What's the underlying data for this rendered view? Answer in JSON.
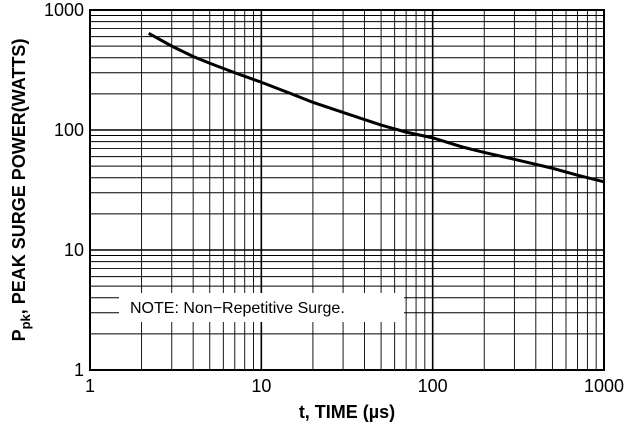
{
  "chart_data": {
    "type": "line",
    "title": "",
    "xlabel": "t, TIME (µs)",
    "ylabel_main": "P",
    "ylabel_sub": "pk",
    "ylabel_rest": ", PEAK SURGE POWER(WATTS)",
    "x_scale": "log",
    "y_scale": "log",
    "xlim": [
      1,
      1000
    ],
    "ylim": [
      1,
      1000
    ],
    "x_tick_labels": [
      "1",
      "10",
      "100",
      "1000"
    ],
    "y_tick_labels": [
      "1",
      "10",
      "100",
      "1000"
    ],
    "grid": true,
    "annotation": "NOTE: Non−Repetitive Surge.",
    "series": [
      {
        "x": [
          2.2,
          3,
          4,
          5,
          7,
          10,
          15,
          20,
          30,
          50,
          70,
          100,
          150,
          200,
          300,
          500,
          700,
          1000
        ],
        "y": [
          640,
          500,
          410,
          360,
          300,
          250,
          200,
          170,
          140,
          110,
          96,
          86,
          72,
          65,
          57,
          48,
          42,
          37
        ]
      }
    ]
  }
}
